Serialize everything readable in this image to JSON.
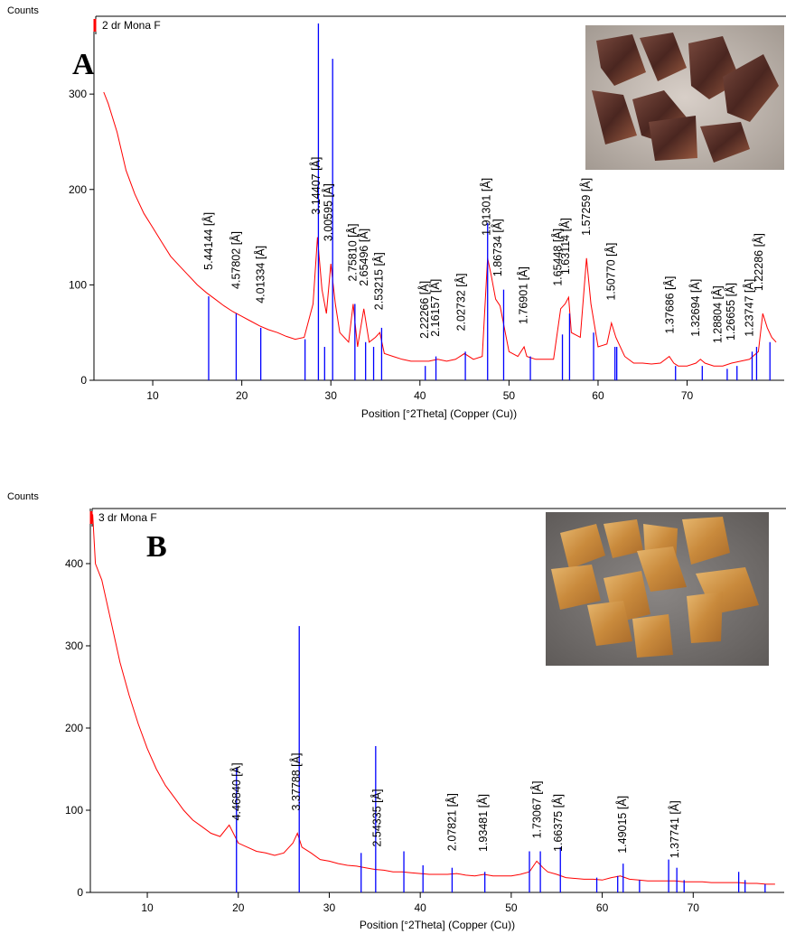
{
  "chart_data": [
    {
      "type": "line",
      "panel_label": "A",
      "y_label": "Counts",
      "x_label": "Position [°2Theta] (Copper (Cu))",
      "xlim": [
        3.4,
        80.9
      ],
      "ylim": [
        0,
        374
      ],
      "xticks": [
        10,
        20,
        30,
        40,
        50,
        60,
        70
      ],
      "yticks": [
        0,
        100,
        200,
        300
      ],
      "series": [
        {
          "name": "2 dr Mona F",
          "type": "line",
          "color": "#ff0000",
          "x": [
            4.5,
            5,
            6,
            7,
            8,
            9,
            10,
            11,
            12,
            13,
            14,
            15,
            16,
            17,
            18,
            19,
            20,
            21,
            22,
            23,
            24,
            25,
            26,
            27,
            28,
            28.5,
            29,
            29.5,
            30,
            30.5,
            31,
            32,
            32.5,
            33,
            33.7,
            34.3,
            35,
            35.5,
            36,
            37,
            38,
            39,
            40,
            41,
            42,
            43,
            44,
            45,
            46,
            47,
            47.6,
            48,
            48.5,
            49,
            50,
            51,
            51.7,
            52,
            53,
            54,
            55,
            55.8,
            56.3,
            56.7,
            57,
            58,
            58.7,
            59.2,
            60,
            61,
            61.5,
            62,
            63,
            64,
            65,
            66,
            67,
            68,
            68.5,
            69,
            70,
            71,
            71.5,
            72,
            73,
            74,
            75,
            76,
            77,
            78,
            78.5,
            79,
            79.5,
            80
          ],
          "values": [
            302,
            290,
            260,
            220,
            195,
            175,
            160,
            145,
            130,
            120,
            110,
            100,
            92,
            85,
            78,
            72,
            67,
            62,
            57,
            53,
            50,
            46,
            43,
            45,
            80,
            150,
            95,
            70,
            122,
            80,
            50,
            40,
            80,
            35,
            75,
            40,
            45,
            50,
            28,
            25,
            22,
            20,
            20,
            20,
            22,
            20,
            22,
            28,
            22,
            25,
            128,
            110,
            85,
            78,
            30,
            25,
            35,
            25,
            22,
            22,
            22,
            75,
            80,
            87,
            50,
            45,
            128,
            80,
            35,
            38,
            60,
            45,
            25,
            18,
            18,
            17,
            18,
            25,
            18,
            15,
            15,
            18,
            22,
            18,
            15,
            15,
            18,
            20,
            22,
            30,
            70,
            55,
            45,
            40
          ]
        },
        {
          "type": "stick",
          "color": "#0000ff",
          "x": [
            16.28,
            19.37,
            22.13,
            27.1,
            28.6,
            29.3,
            30.2,
            32.7,
            33.9,
            34.8,
            35.7,
            40.6,
            41.8,
            45.1,
            47.6,
            49.4,
            52.4,
            56.0,
            56.8,
            59.5,
            61.9,
            62.1,
            68.7,
            71.7,
            74.5,
            75.6,
            77.3,
            77.8,
            79.3
          ],
          "values": [
            88,
            70,
            55,
            43,
            374,
            35,
            337,
            80,
            40,
            35,
            55,
            15,
            25,
            30,
            165,
            95,
            25,
            48,
            70,
            50,
            35,
            35,
            15,
            15,
            12,
            15,
            30,
            35,
            40
          ]
        }
      ],
      "annotations": [
        {
          "text": "5.44144 [Å]",
          "x": 16.28
        },
        {
          "text": "4.57802 [Å]",
          "x": 19.37
        },
        {
          "text": "4.01334 [Å]",
          "x": 22.13
        },
        {
          "text": "3.14407 [Å]",
          "x": 28.36
        },
        {
          "text": "3.00595 [Å]",
          "x": 29.7
        },
        {
          "text": "2.75810 [Å]",
          "x": 32.44
        },
        {
          "text": "2.65496 [Å]",
          "x": 33.73
        },
        {
          "text": "2.53215 [Å]",
          "x": 35.42
        },
        {
          "text": "2.22266 [Å]",
          "x": 40.55
        },
        {
          "text": "2.16157 [Å]",
          "x": 41.75
        },
        {
          "text": "2.02732 [Å]",
          "x": 44.66
        },
        {
          "text": "1.91301 [Å]",
          "x": 47.49
        },
        {
          "text": "1.86734 [Å]",
          "x": 48.73
        },
        {
          "text": "1.76901 [Å]",
          "x": 51.63
        },
        {
          "text": "1.65448 [Å]",
          "x": 55.49
        },
        {
          "text": "1.63114 [Å]",
          "x": 56.34
        },
        {
          "text": "1.57259 [Å]",
          "x": 58.66
        },
        {
          "text": "1.50770 [Å]",
          "x": 61.45
        },
        {
          "text": "1.37686 [Å]",
          "x": 68.05
        },
        {
          "text": "1.32694 [Å]",
          "x": 70.97
        },
        {
          "text": "1.28804 [Å]",
          "x": 73.45
        },
        {
          "text": "1.26655 [Å]",
          "x": 74.92
        },
        {
          "text": "1.23747 [Å]",
          "x": 76.99
        },
        {
          "text": "1.22286 [Å]",
          "x": 78.08
        }
      ]
    },
    {
      "type": "line",
      "panel_label": "B",
      "y_label": "Counts",
      "x_label": "Position [°2Theta] (Copper (Cu))",
      "xlim": [
        3.74,
        80.0
      ],
      "ylim": [
        0,
        467
      ],
      "xticks": [
        10,
        20,
        30,
        40,
        50,
        60,
        70
      ],
      "yticks": [
        0,
        100,
        200,
        300,
        400
      ],
      "series": [
        {
          "name": "3 dr Mona F",
          "type": "line",
          "color": "#ff0000",
          "x": [
            4,
            4.3,
            5,
            6,
            7,
            8,
            9,
            10,
            11,
            12,
            13,
            14,
            15,
            16,
            17,
            18,
            19,
            20,
            21,
            22,
            23,
            24,
            25,
            26,
            26.5,
            27,
            28,
            29,
            30,
            31,
            32,
            33,
            34,
            35,
            36,
            37,
            38,
            39,
            40,
            41,
            42,
            43,
            44,
            45,
            46,
            47,
            48,
            49,
            50,
            51,
            52,
            52.8,
            53.5,
            54,
            55,
            56,
            57,
            58,
            59,
            60,
            61,
            62,
            63,
            64,
            65,
            66,
            67,
            68,
            69,
            70,
            71,
            72,
            73,
            74,
            75,
            76,
            77,
            78,
            79
          ],
          "values": [
            460,
            400,
            380,
            330,
            280,
            240,
            205,
            175,
            150,
            130,
            115,
            100,
            88,
            80,
            72,
            68,
            82,
            60,
            55,
            50,
            48,
            45,
            48,
            60,
            72,
            55,
            48,
            40,
            38,
            35,
            33,
            32,
            30,
            28,
            27,
            25,
            25,
            24,
            23,
            22,
            22,
            22,
            23,
            21,
            20,
            22,
            20,
            20,
            20,
            22,
            25,
            38,
            30,
            25,
            22,
            18,
            17,
            16,
            16,
            15,
            18,
            20,
            16,
            15,
            14,
            14,
            14,
            14,
            13,
            13,
            13,
            12,
            12,
            12,
            12,
            11,
            11,
            10,
            10
          ]
        },
        {
          "type": "stick",
          "color": "#0000ff",
          "x": [
            19.8,
            26.7,
            33.5,
            35.1,
            38.2,
            40.3,
            43.5,
            47.1,
            52.0,
            53.2,
            55.4,
            59.4,
            61.7,
            62.3,
            64.1,
            67.3,
            68.2,
            69.0,
            75.0,
            75.7,
            77.9
          ],
          "values": [
            152,
            324,
            48,
            178,
            50,
            33,
            30,
            25,
            50,
            50,
            55,
            18,
            20,
            35,
            15,
            40,
            30,
            15,
            25,
            15,
            10
          ]
        }
      ],
      "annotations": [
        {
          "text": "4.46840 [Å]",
          "x": 19.85
        },
        {
          "text": "3.37788 [Å]",
          "x": 26.36
        },
        {
          "text": "2.54335 [Å]",
          "x": 35.26
        },
        {
          "text": "2.07821 [Å]",
          "x": 43.51
        },
        {
          "text": "1.93481 [Å]",
          "x": 46.92
        },
        {
          "text": "1.73067 [Å]",
          "x": 52.85
        },
        {
          "text": "1.66375 [Å]",
          "x": 55.17
        },
        {
          "text": "1.49015 [Å]",
          "x": 62.25
        },
        {
          "text": "1.37741 [Å]",
          "x": 68.01
        }
      ]
    }
  ]
}
